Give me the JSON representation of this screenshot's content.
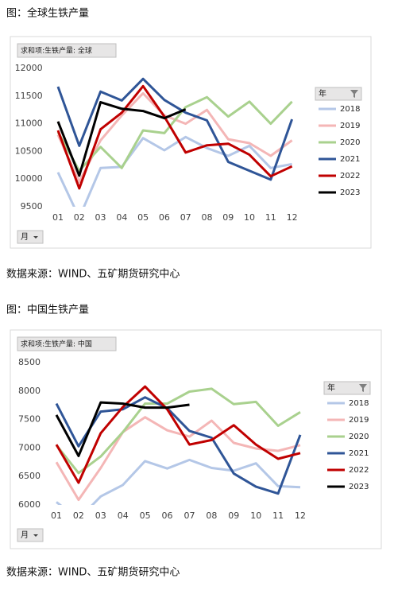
{
  "chart_data": [
    {
      "type": "line",
      "title": "图：全球生铁产量",
      "pivot_label": "求和项:生铁产量: 全球",
      "legend_title": "年",
      "filter_label": "月",
      "source": "数据来源：WIND、五矿期货研究中心",
      "categories": [
        "01",
        "02",
        "03",
        "04",
        "05",
        "06",
        "07",
        "08",
        "09",
        "10",
        "11",
        "12"
      ],
      "ylim": [
        9500,
        12000
      ],
      "yticks": [
        9500,
        10000,
        10500,
        11000,
        11500,
        12000
      ],
      "series": [
        {
          "name": "2018",
          "color": "#b4c7e7",
          "values": [
            10120,
            9300,
            10200,
            10220,
            10740,
            10520,
            10760,
            10560,
            10420,
            10600,
            10200,
            10270
          ]
        },
        {
          "name": "2019",
          "color": "#f4b6b6",
          "values": [
            10800,
            9950,
            10700,
            11150,
            11550,
            11150,
            11000,
            11250,
            10720,
            10650,
            10420,
            10700
          ]
        },
        {
          "name": "2020",
          "color": "#a9d18e",
          "values": [
            10850,
            10150,
            10580,
            10200,
            10880,
            10830,
            11300,
            11480,
            11130,
            11400,
            11000,
            11400
          ]
        },
        {
          "name": "2021",
          "color": "#2f5597",
          "values": [
            11670,
            10600,
            11580,
            11420,
            11810,
            11430,
            11200,
            11060,
            10310,
            10150,
            9990,
            11080
          ]
        },
        {
          "name": "2022",
          "color": "#c00000",
          "values": [
            10880,
            9830,
            10900,
            11200,
            11680,
            11130,
            10480,
            10610,
            10640,
            10440,
            10050,
            10230
          ]
        },
        {
          "name": "2023",
          "color": "#000000",
          "values": [
            11040,
            10060,
            11390,
            11270,
            11230,
            11100,
            11260,
            null,
            null,
            null,
            null,
            null
          ]
        }
      ]
    },
    {
      "type": "line",
      "title": "图：中国生铁产量",
      "pivot_label": "求和项:生铁产量: 中国",
      "legend_title": "年",
      "filter_label": "月",
      "source": "数据来源：WIND、五矿期货研究中心",
      "categories": [
        "01",
        "02",
        "03",
        "04",
        "05",
        "06",
        "07",
        "08",
        "09",
        "10",
        "11",
        "12"
      ],
      "ylim": [
        6000,
        8500
      ],
      "yticks": [
        6000,
        6500,
        7000,
        7500,
        8000,
        8500
      ],
      "series": [
        {
          "name": "2018",
          "color": "#b4c7e7",
          "values": [
            6050,
            5750,
            6150,
            6350,
            6770,
            6640,
            6790,
            6650,
            6600,
            6730,
            6330,
            6310
          ]
        },
        {
          "name": "2019",
          "color": "#f4b6b6",
          "values": [
            6750,
            6090,
            6650,
            7280,
            7540,
            7310,
            7200,
            7480,
            7090,
            6990,
            6950,
            7050
          ]
        },
        {
          "name": "2020",
          "color": "#a9d18e",
          "values": [
            7050,
            6560,
            6850,
            7280,
            7780,
            7780,
            7990,
            8040,
            7770,
            7810,
            7390,
            7630
          ]
        },
        {
          "name": "2021",
          "color": "#2f5597",
          "values": [
            7780,
            7030,
            7640,
            7680,
            7890,
            7700,
            7300,
            7180,
            6550,
            6320,
            6200,
            7230
          ]
        },
        {
          "name": "2022",
          "color": "#c00000",
          "values": [
            7060,
            6390,
            7260,
            7720,
            8080,
            7680,
            7060,
            7140,
            7400,
            7060,
            6810,
            6910
          ]
        },
        {
          "name": "2023",
          "color": "#000000",
          "values": [
            7580,
            6860,
            7800,
            7780,
            7710,
            7710,
            7760,
            null,
            null,
            null,
            null,
            null
          ]
        }
      ]
    }
  ]
}
